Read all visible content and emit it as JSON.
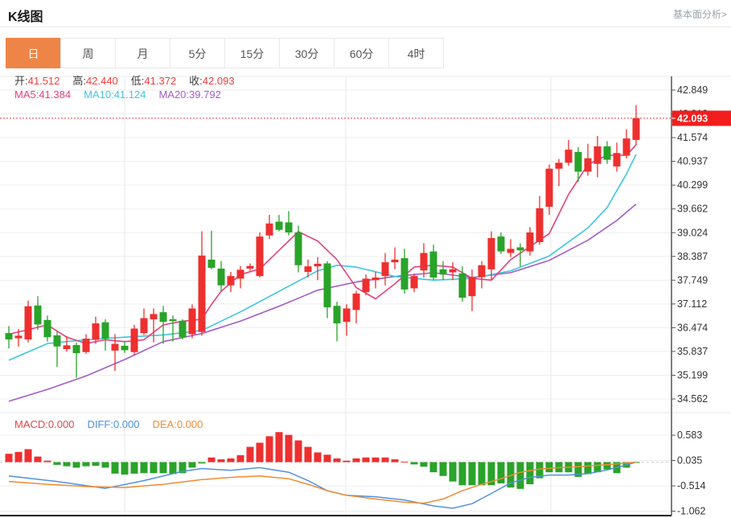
{
  "header": {
    "title": "K线图",
    "link": "基本面分析>"
  },
  "tabs": {
    "items": [
      "日",
      "周",
      "月",
      "5分",
      "15分",
      "30分",
      "60分",
      "4时"
    ],
    "active_index": 0,
    "active_color": "#ee8547"
  },
  "ohlc": {
    "items": [
      {
        "label": "开:",
        "value": "41.512"
      },
      {
        "label": "高:",
        "value": "42.440"
      },
      {
        "label": "低:",
        "value": "41.372"
      },
      {
        "label": "收:",
        "value": "42.093"
      }
    ],
    "value_color": "#f43b3b",
    "label_color": "#3c3c3c"
  },
  "ma_info": {
    "items": [
      {
        "label": "MA5:",
        "value": "41.384",
        "color": "#e3417e"
      },
      {
        "label": "MA10:",
        "value": "41.124",
        "color": "#3fc6dc"
      },
      {
        "label": "MA20:",
        "value": "39.792",
        "color": "#a55bc5"
      }
    ]
  },
  "macd_info": {
    "items": [
      {
        "label": "MACD:",
        "value": "0.000",
        "color": "#e2454a"
      },
      {
        "label": "DIFF:",
        "value": "0.000",
        "color": "#4f8fdc"
      },
      {
        "label": "DEA:",
        "value": "0.000",
        "color": "#ee8c35"
      }
    ]
  },
  "colors": {
    "up": "#ee2f2f",
    "down": "#29a329",
    "ma5": "#e3417e",
    "ma10": "#3fc6dc",
    "ma20": "#a55bc5",
    "diff": "#5291dc",
    "dea": "#ee8c35",
    "grid": "#ededed",
    "vgrid": "#e8e8e8",
    "axis": "#555555",
    "axis_text": "#333333",
    "price_line": "#f03e3e",
    "marker_bg": "#f31d1d",
    "marker_text": "#ffffff"
  },
  "chart_data": {
    "type": "candlestick",
    "title": "K线图",
    "main": {
      "y_axis_labels": [
        "42.849",
        "42.212",
        "41.574",
        "40.937",
        "40.299",
        "39.662",
        "39.024",
        "38.387",
        "37.749",
        "37.112",
        "36.474",
        "35.837",
        "35.199",
        "34.562"
      ],
      "y_top_value": 42.849,
      "y_step": 0.6375,
      "current_price": "42.093",
      "current_price_value": 42.093,
      "candles_ohlc": [
        [
          36.33,
          36.52,
          35.92,
          36.16
        ],
        [
          36.19,
          36.44,
          35.97,
          36.26
        ],
        [
          36.16,
          37.2,
          36.08,
          37.05
        ],
        [
          37.07,
          37.32,
          36.42,
          36.56
        ],
        [
          36.68,
          36.8,
          36.1,
          36.22
        ],
        [
          36.27,
          36.37,
          35.42,
          35.97
        ],
        [
          35.9,
          36.25,
          35.83,
          36.0
        ],
        [
          36.01,
          36.08,
          35.13,
          35.79
        ],
        [
          35.82,
          36.3,
          35.77,
          36.18
        ],
        [
          36.15,
          36.77,
          36.04,
          36.59
        ],
        [
          36.62,
          36.7,
          35.86,
          36.18
        ],
        [
          35.86,
          36.3,
          35.31,
          36.04
        ],
        [
          35.99,
          36.1,
          35.8,
          35.87
        ],
        [
          35.82,
          36.55,
          35.75,
          36.45
        ],
        [
          36.33,
          36.99,
          36.28,
          36.73
        ],
        [
          36.7,
          36.99,
          36.08,
          36.84
        ],
        [
          36.89,
          37.06,
          36.04,
          36.63
        ],
        [
          36.7,
          36.8,
          36.1,
          36.65
        ],
        [
          36.66,
          36.7,
          36.16,
          36.22
        ],
        [
          36.3,
          37.1,
          36.19,
          36.99
        ],
        [
          36.36,
          39.06,
          36.26,
          38.41
        ],
        [
          38.3,
          39.08,
          38.04,
          38.08
        ],
        [
          38.06,
          38.26,
          37.46,
          37.61
        ],
        [
          37.61,
          37.97,
          37.43,
          37.86
        ],
        [
          37.79,
          38.13,
          37.53,
          38.03
        ],
        [
          38.06,
          38.2,
          38.0,
          38.13
        ],
        [
          37.86,
          39.03,
          37.82,
          38.92
        ],
        [
          38.95,
          39.5,
          38.85,
          39.27
        ],
        [
          39.32,
          39.5,
          39.06,
          39.1
        ],
        [
          39.3,
          39.6,
          38.95,
          39.03
        ],
        [
          39.03,
          39.21,
          37.96,
          38.15
        ],
        [
          37.97,
          38.3,
          37.82,
          38.12
        ],
        [
          38.12,
          38.37,
          37.75,
          38.19
        ],
        [
          38.2,
          38.26,
          36.73,
          37.02
        ],
        [
          37.06,
          37.17,
          36.11,
          36.59
        ],
        [
          36.63,
          37.1,
          36.26,
          36.99
        ],
        [
          36.95,
          37.46,
          36.59,
          37.39
        ],
        [
          37.43,
          37.9,
          37.35,
          37.79
        ],
        [
          37.75,
          37.97,
          37.53,
          37.82
        ],
        [
          37.86,
          38.48,
          37.61,
          38.23
        ],
        [
          38.23,
          38.63,
          38.04,
          38.3
        ],
        [
          38.34,
          38.59,
          37.39,
          37.5
        ],
        [
          37.53,
          37.93,
          37.43,
          37.86
        ],
        [
          38.01,
          38.74,
          37.82,
          38.48
        ],
        [
          38.52,
          38.7,
          37.75,
          37.82
        ],
        [
          38.04,
          38.26,
          37.75,
          37.9
        ],
        [
          37.96,
          38.23,
          37.75,
          38.04
        ],
        [
          37.93,
          38.12,
          37.17,
          37.28
        ],
        [
          37.32,
          38.04,
          36.92,
          37.83
        ],
        [
          37.83,
          38.26,
          37.53,
          38.15
        ],
        [
          38.04,
          39.06,
          37.75,
          38.88
        ],
        [
          38.92,
          39.03,
          38.45,
          38.52
        ],
        [
          38.48,
          38.85,
          38.37,
          38.59
        ],
        [
          38.63,
          38.74,
          38.12,
          38.55
        ],
        [
          38.52,
          39.17,
          38.41,
          39.03
        ],
        [
          38.77,
          40.01,
          38.7,
          39.68
        ],
        [
          39.72,
          40.85,
          39.5,
          40.74
        ],
        [
          40.74,
          41.0,
          40.27,
          40.9
        ],
        [
          40.9,
          41.51,
          40.82,
          41.25
        ],
        [
          41.19,
          41.32,
          40.38,
          40.66
        ],
        [
          40.66,
          41.41,
          40.55,
          41.02
        ],
        [
          40.87,
          41.62,
          40.51,
          41.34
        ],
        [
          41.34,
          41.48,
          40.87,
          40.98
        ],
        [
          40.8,
          41.44,
          40.66,
          41.16
        ],
        [
          41.09,
          41.8,
          41.02,
          41.55
        ],
        [
          41.512,
          42.44,
          41.372,
          42.093
        ]
      ],
      "ma5_points": [
        [
          0,
          36.3
        ],
        [
          2,
          36.42
        ],
        [
          4,
          36.55
        ],
        [
          6,
          36.22
        ],
        [
          8,
          36.05
        ],
        [
          10,
          36.15
        ],
        [
          12,
          36.1
        ],
        [
          14,
          36.15
        ],
        [
          16,
          36.55
        ],
        [
          18,
          36.65
        ],
        [
          20,
          36.7
        ],
        [
          21,
          37.1
        ],
        [
          22,
          37.45
        ],
        [
          24,
          37.9
        ],
        [
          26,
          38.05
        ],
        [
          28,
          38.55
        ],
        [
          30,
          39.05
        ],
        [
          32,
          38.8
        ],
        [
          34,
          38.3
        ],
        [
          36,
          37.55
        ],
        [
          38,
          37.25
        ],
        [
          40,
          37.65
        ],
        [
          42,
          38.1
        ],
        [
          44,
          38.15
        ],
        [
          46,
          38.1
        ],
        [
          48,
          37.8
        ],
        [
          50,
          37.75
        ],
        [
          52,
          38.3
        ],
        [
          54,
          38.65
        ],
        [
          56,
          39.0
        ],
        [
          58,
          40.05
        ],
        [
          60,
          40.85
        ],
        [
          62,
          41.1
        ],
        [
          64,
          41.1
        ],
        [
          65,
          41.384
        ]
      ],
      "ma10_points": [
        [
          0,
          35.6
        ],
        [
          4,
          36.05
        ],
        [
          8,
          36.15
        ],
        [
          12,
          36.22
        ],
        [
          16,
          36.28
        ],
        [
          20,
          36.4
        ],
        [
          24,
          36.9
        ],
        [
          28,
          37.45
        ],
        [
          32,
          38.0
        ],
        [
          34,
          38.15
        ],
        [
          36,
          38.1
        ],
        [
          40,
          37.85
        ],
        [
          44,
          37.75
        ],
        [
          48,
          37.8
        ],
        [
          52,
          38.0
        ],
        [
          56,
          38.4
        ],
        [
          60,
          39.15
        ],
        [
          62,
          39.7
        ],
        [
          64,
          40.6
        ],
        [
          65,
          41.124
        ]
      ],
      "ma20_points": [
        [
          0,
          34.5
        ],
        [
          4,
          34.82
        ],
        [
          8,
          35.18
        ],
        [
          12,
          35.62
        ],
        [
          16,
          36.1
        ],
        [
          20,
          36.32
        ],
        [
          24,
          36.65
        ],
        [
          28,
          37.05
        ],
        [
          32,
          37.48
        ],
        [
          36,
          37.7
        ],
        [
          40,
          37.85
        ],
        [
          44,
          37.95
        ],
        [
          48,
          37.82
        ],
        [
          52,
          37.95
        ],
        [
          56,
          38.28
        ],
        [
          60,
          38.82
        ],
        [
          63,
          39.35
        ],
        [
          65,
          39.792
        ]
      ]
    },
    "macd": {
      "y_axis_labels": [
        "0.583",
        "0.035",
        "-0.514",
        "-1.062"
      ],
      "histogram": [
        0.18,
        0.22,
        0.28,
        0.12,
        0.03,
        -0.06,
        -0.09,
        -0.12,
        -0.09,
        -0.08,
        -0.12,
        -0.25,
        -0.27,
        -0.25,
        -0.24,
        -0.24,
        -0.24,
        -0.26,
        -0.24,
        -0.12,
        -0.03,
        0.1,
        0.06,
        0.08,
        0.15,
        0.33,
        0.42,
        0.56,
        0.65,
        0.59,
        0.47,
        0.33,
        0.21,
        0.16,
        0.08,
        0.03,
        0.08,
        0.1,
        0.1,
        0.1,
        0.06,
        0.01,
        -0.05,
        -0.1,
        -0.22,
        -0.3,
        -0.42,
        -0.5,
        -0.5,
        -0.5,
        -0.5,
        -0.46,
        -0.55,
        -0.58,
        -0.48,
        -0.35,
        -0.22,
        -0.22,
        -0.22,
        -0.32,
        -0.26,
        -0.22,
        -0.16,
        -0.24,
        -0.12,
        -0.01
      ],
      "diff_points": [
        [
          0,
          -0.3
        ],
        [
          5,
          -0.42
        ],
        [
          10,
          -0.57
        ],
        [
          14,
          -0.4
        ],
        [
          18,
          -0.2
        ],
        [
          20,
          -0.14
        ],
        [
          23,
          -0.18
        ],
        [
          26,
          -0.12
        ],
        [
          29,
          -0.22
        ],
        [
          31,
          -0.4
        ],
        [
          33,
          -0.62
        ],
        [
          35,
          -0.72
        ],
        [
          38,
          -0.75
        ],
        [
          41,
          -0.82
        ],
        [
          44,
          -0.95
        ],
        [
          46,
          -1.0
        ],
        [
          48,
          -0.9
        ],
        [
          50,
          -0.68
        ],
        [
          52,
          -0.45
        ],
        [
          54,
          -0.33
        ],
        [
          56,
          -0.28
        ],
        [
          58,
          -0.28
        ],
        [
          60,
          -0.25
        ],
        [
          62,
          -0.17
        ],
        [
          64,
          -0.06
        ],
        [
          65,
          0.0
        ]
      ],
      "dea_points": [
        [
          0,
          -0.42
        ],
        [
          4,
          -0.48
        ],
        [
          8,
          -0.53
        ],
        [
          12,
          -0.55
        ],
        [
          16,
          -0.48
        ],
        [
          20,
          -0.38
        ],
        [
          23,
          -0.33
        ],
        [
          26,
          -0.3
        ],
        [
          29,
          -0.36
        ],
        [
          31,
          -0.48
        ],
        [
          33,
          -0.62
        ],
        [
          35,
          -0.72
        ],
        [
          38,
          -0.8
        ],
        [
          41,
          -0.87
        ],
        [
          43,
          -0.89
        ],
        [
          45,
          -0.8
        ],
        [
          47,
          -0.62
        ],
        [
          49,
          -0.48
        ],
        [
          51,
          -0.36
        ],
        [
          53,
          -0.22
        ],
        [
          55,
          -0.15
        ],
        [
          57,
          -0.12
        ],
        [
          59,
          -0.1
        ],
        [
          61,
          -0.07
        ],
        [
          63,
          -0.04
        ],
        [
          65,
          0.0
        ]
      ]
    }
  }
}
